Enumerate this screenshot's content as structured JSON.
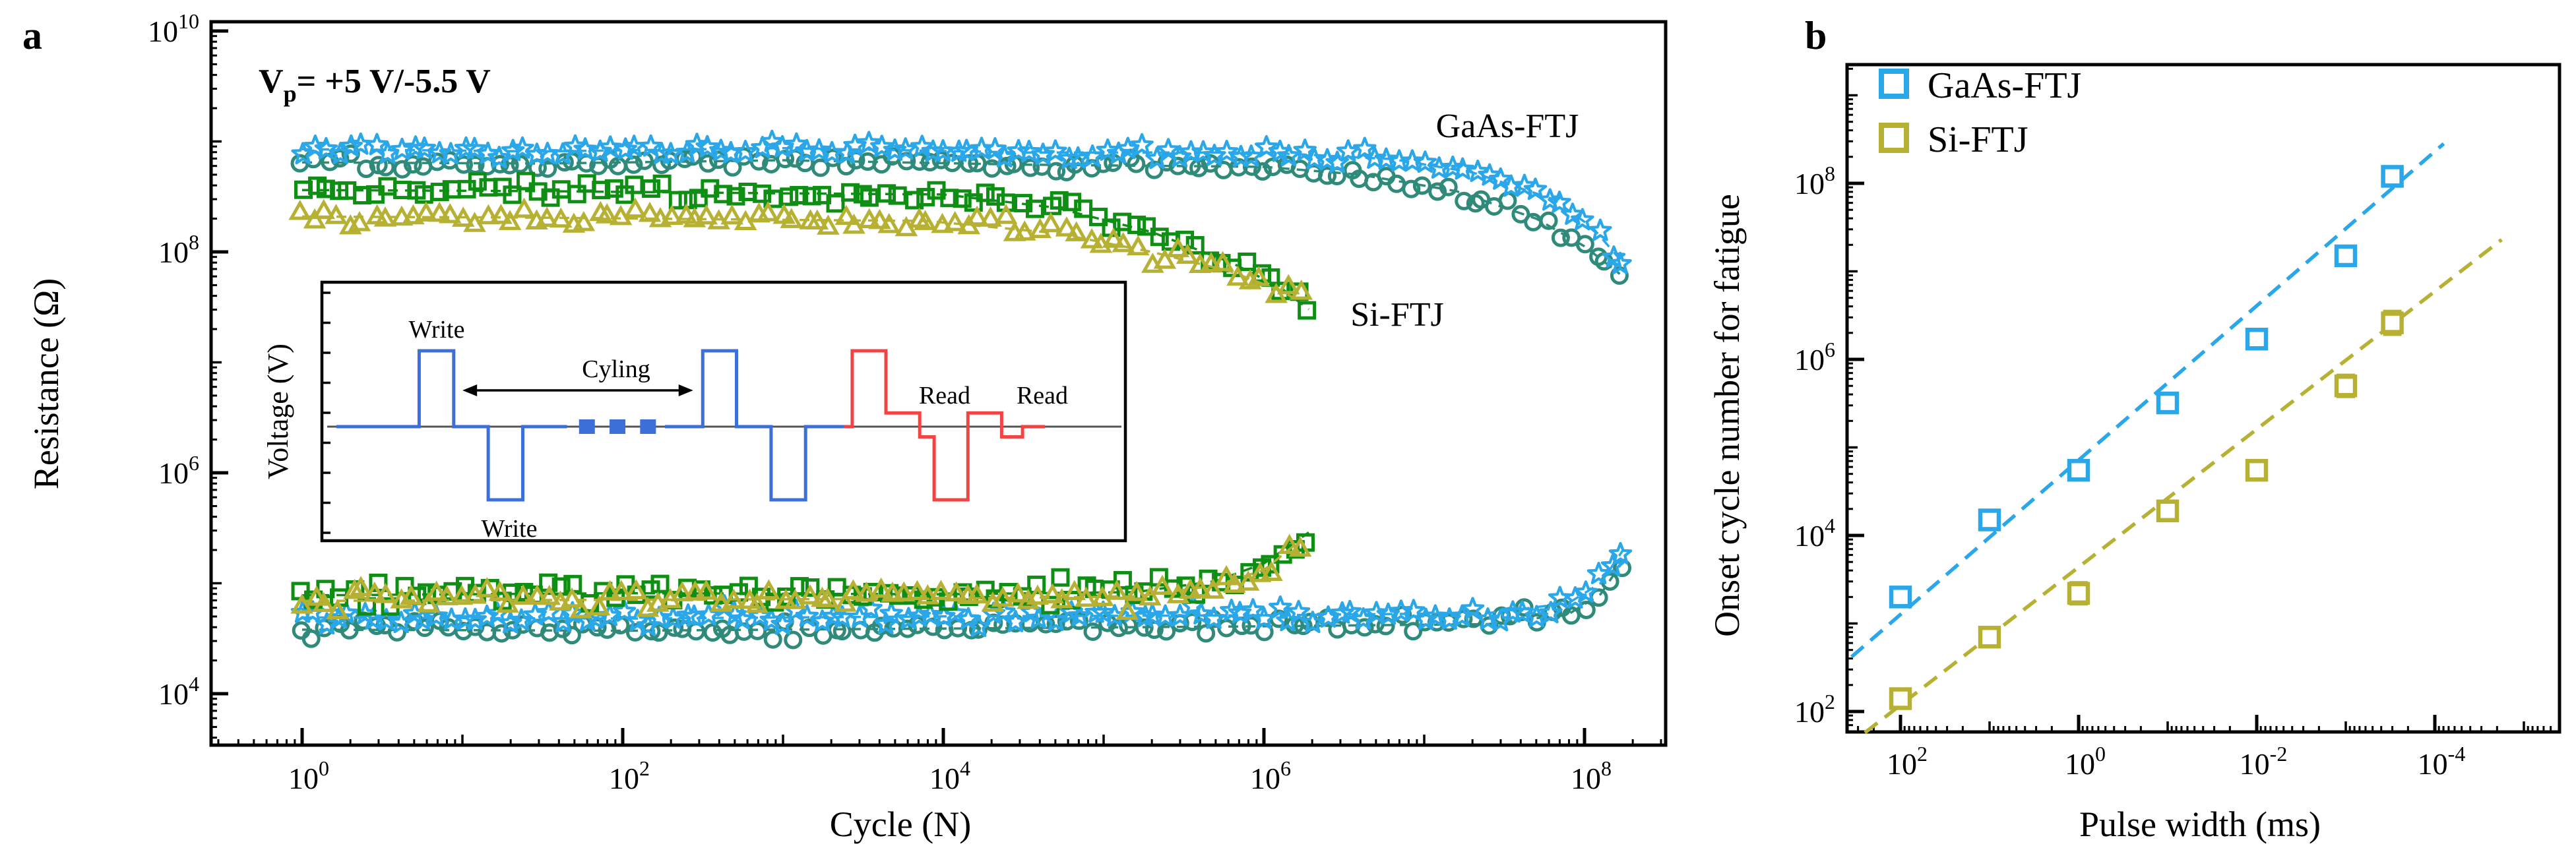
{
  "colors": {
    "skyblue": "#2AA7E8",
    "teal": "#2F8A79",
    "green": "#0E8F14",
    "olive": "#B7B133",
    "wave_blue": "#3C6FD8",
    "wave_red": "#F14444",
    "black": "#000000"
  },
  "chart_data": [
    {
      "id": "panel_a",
      "type": "scatter",
      "panel_label": "a",
      "annotation": {
        "v": "V",
        "sub": "p",
        "rest": "= +5 V/-5.5 V"
      },
      "xlabel": "Cycle (N)",
      "ylabel": "Resistance (Ω)",
      "xlim_log": [
        -0.57,
        8.5
      ],
      "ylim_log": [
        3.53,
        10.08
      ],
      "x_tick_exponents": [
        0,
        2,
        4,
        6,
        8
      ],
      "y_tick_exponents": [
        4,
        6,
        8,
        10
      ],
      "grid": false,
      "series_labels": [
        {
          "text": "GaAs-FTJ",
          "color_key": "skyblue",
          "log_x": 7.52,
          "log_y": 9.18
        },
        {
          "text": "Si-FTJ",
          "color_key": "olive",
          "log_x": 6.85,
          "log_y": 7.42
        }
      ],
      "series": [
        {
          "name": "GaAs-FTJ HRS (circles)",
          "marker": "circle",
          "color_key": "teal",
          "n": 108,
          "noise": 0.045,
          "anchors_log": [
            [
              0,
              8.81
            ],
            [
              1.5,
              8.8
            ],
            [
              3,
              8.83
            ],
            [
              4.5,
              8.79
            ],
            [
              6.0,
              8.77
            ],
            [
              6.6,
              8.7
            ],
            [
              7.2,
              8.55
            ],
            [
              7.7,
              8.3
            ],
            [
              8.0,
              8.05
            ],
            [
              8.22,
              7.8
            ]
          ]
        },
        {
          "name": "GaAs-FTJ HRS (stars)",
          "marker": "star",
          "color_key": "skyblue",
          "n": 108,
          "noise": 0.04,
          "anchors_log": [
            [
              0,
              8.93
            ],
            [
              1.5,
              8.91
            ],
            [
              3,
              8.94
            ],
            [
              4.5,
              8.9
            ],
            [
              6.0,
              8.9
            ],
            [
              6.8,
              8.84
            ],
            [
              7.3,
              8.72
            ],
            [
              7.8,
              8.48
            ],
            [
              8.05,
              8.22
            ],
            [
              8.24,
              7.9
            ]
          ]
        },
        {
          "name": "Si-FTJ HRS (squares)",
          "marker": "square",
          "color_key": "green",
          "n": 82,
          "noise": 0.05,
          "anchors_log": [
            [
              0,
              8.56
            ],
            [
              1.5,
              8.55
            ],
            [
              3,
              8.53
            ],
            [
              4.0,
              8.52
            ],
            [
              4.7,
              8.4
            ],
            [
              5.3,
              8.18
            ],
            [
              5.8,
              7.9
            ],
            [
              6.1,
              7.68
            ],
            [
              6.28,
              7.48
            ]
          ]
        },
        {
          "name": "Si-FTJ HRS (triangles)",
          "marker": "triangle",
          "color_key": "olive",
          "n": 82,
          "noise": 0.055,
          "anchors_log": [
            [
              0,
              8.32
            ],
            [
              1.5,
              8.31
            ],
            [
              3,
              8.29
            ],
            [
              3.9,
              8.28
            ],
            [
              4.7,
              8.17
            ],
            [
              5.3,
              8.0
            ],
            [
              5.8,
              7.82
            ],
            [
              6.08,
              7.66
            ],
            [
              6.22,
              7.56
            ]
          ]
        },
        {
          "name": "GaAs-FTJ LRS (circles)",
          "marker": "circle",
          "color_key": "teal",
          "n": 108,
          "noise": 0.055,
          "anchors_log": [
            [
              0,
              4.58
            ],
            [
              2,
              4.57
            ],
            [
              4,
              4.59
            ],
            [
              6,
              4.61
            ],
            [
              7.4,
              4.63
            ],
            [
              7.9,
              4.72
            ],
            [
              8.1,
              4.9
            ],
            [
              8.24,
              5.2
            ]
          ]
        },
        {
          "name": "GaAs-FTJ LRS (stars)",
          "marker": "star",
          "color_key": "skyblue",
          "n": 108,
          "noise": 0.05,
          "anchors_log": [
            [
              0,
              4.69
            ],
            [
              2,
              4.68
            ],
            [
              4,
              4.7
            ],
            [
              6,
              4.71
            ],
            [
              7.4,
              4.73
            ],
            [
              7.9,
              4.82
            ],
            [
              8.1,
              5.0
            ],
            [
              8.24,
              5.3
            ]
          ]
        },
        {
          "name": "Si-FTJ LRS (squares)",
          "marker": "square",
          "color_key": "green",
          "n": 82,
          "noise": 0.07,
          "anchors_log": [
            [
              0,
              4.89
            ],
            [
              2,
              4.91
            ],
            [
              4,
              4.9
            ],
            [
              5.2,
              4.92
            ],
            [
              5.7,
              5.02
            ],
            [
              6.0,
              5.18
            ],
            [
              6.28,
              5.46
            ]
          ]
        },
        {
          "name": "Si-FTJ LRS (triangles)",
          "marker": "triangle",
          "color_key": "olive",
          "n": 82,
          "noise": 0.07,
          "anchors_log": [
            [
              0,
              4.84
            ],
            [
              2,
              4.85
            ],
            [
              4,
              4.86
            ],
            [
              5.2,
              4.88
            ],
            [
              5.7,
              4.98
            ],
            [
              6.0,
              5.12
            ],
            [
              6.22,
              5.38
            ]
          ]
        }
      ],
      "inset": {
        "ylabel": "Voltage (V)",
        "labels": {
          "write_top": "Write",
          "write_bottom": "Write",
          "cycling": "Cyling",
          "read_1": "Read",
          "read_2": "Read"
        },
        "blue_wave_1": [
          [
            0.018,
            0
          ],
          [
            0.121,
            0
          ],
          [
            0.121,
            1
          ],
          [
            0.164,
            1
          ],
          [
            0.164,
            0
          ],
          [
            0.207,
            0
          ],
          [
            0.207,
            -1
          ],
          [
            0.25,
            -1
          ],
          [
            0.25,
            0
          ],
          [
            0.305,
            0
          ]
        ],
        "blue_wave_2": [
          [
            0.427,
            0
          ],
          [
            0.474,
            0
          ],
          [
            0.474,
            1
          ],
          [
            0.516,
            1
          ],
          [
            0.516,
            0
          ],
          [
            0.559,
            0
          ],
          [
            0.559,
            -1
          ],
          [
            0.602,
            -1
          ],
          [
            0.602,
            0
          ],
          [
            0.65,
            0
          ]
        ],
        "blue_dashes_x": [
          0.32,
          0.358,
          0.396
        ],
        "red_wave": [
          [
            0.65,
            0
          ],
          [
            0.66,
            0
          ],
          [
            0.66,
            1
          ],
          [
            0.702,
            1
          ],
          [
            0.702,
            0.18
          ],
          [
            0.744,
            0.18
          ],
          [
            0.744,
            -0.14
          ],
          [
            0.762,
            -0.14
          ],
          [
            0.762,
            -1
          ],
          [
            0.804,
            -1
          ],
          [
            0.804,
            0.18
          ],
          [
            0.846,
            0.18
          ],
          [
            0.846,
            -0.14
          ],
          [
            0.872,
            -0.14
          ],
          [
            0.872,
            0
          ],
          [
            0.9,
            0
          ]
        ],
        "cycling_arrow": {
          "x1_frac": 0.175,
          "x2_frac": 0.462
        }
      }
    },
    {
      "id": "panel_b",
      "type": "scatter",
      "panel_label": "b",
      "xlabel": "Pulse width (ms)",
      "ylabel": "Onset cycle number for fatigue",
      "x_axis_reversed": true,
      "xlim_log": [
        2.6,
        -5.4
      ],
      "ylim_log": [
        1.78,
        9.35
      ],
      "x_tick_exponents": [
        2,
        0,
        -2,
        -4
      ],
      "y_tick_exponents": [
        2,
        4,
        6,
        8
      ],
      "grid": false,
      "legend": [
        {
          "label": "GaAs-FTJ",
          "color_key": "skyblue"
        },
        {
          "label": "Si-FTJ",
          "color_key": "olive"
        }
      ],
      "series": [
        {
          "name": "GaAs-FTJ",
          "marker": "square",
          "color_key": "skyblue",
          "points": [
            {
              "pw_ms": 100,
              "onset": 2000,
              "err_log": 0
            },
            {
              "pw_ms": 10,
              "onset": 15000,
              "err_log": 0.1
            },
            {
              "pw_ms": 1,
              "onset": 55000,
              "err_log": 0
            },
            {
              "pw_ms": 0.1,
              "onset": 320000,
              "err_log": 0.06
            },
            {
              "pw_ms": 0.01,
              "onset": 1700000,
              "err_log": 0.09
            },
            {
              "pw_ms": 0.001,
              "onset": 15000000,
              "err_log": 0.05
            },
            {
              "pw_ms": 0.0003,
              "onset": 120000000,
              "err_log": 0.1
            }
          ]
        },
        {
          "name": "Si-FTJ",
          "marker": "square",
          "color_key": "olive",
          "points": [
            {
              "pw_ms": 100,
              "onset": 140,
              "err_log": 0
            },
            {
              "pw_ms": 10,
              "onset": 700,
              "err_log": 0.09
            },
            {
              "pw_ms": 1,
              "onset": 2200,
              "err_log": 0.12
            },
            {
              "pw_ms": 0.1,
              "onset": 19000,
              "err_log": 0.08
            },
            {
              "pw_ms": 0.01,
              "onset": 55000,
              "err_log": 0
            },
            {
              "pw_ms": 0.001,
              "onset": 500000,
              "err_log": 0.12
            },
            {
              "pw_ms": 0.0003,
              "onset": 2600000,
              "err_log": 0.13
            }
          ]
        }
      ],
      "fit_lines": [
        {
          "series": "GaAs-FTJ",
          "color_key": "skyblue",
          "endpoints_log": [
            [
              2.55,
              2.62
            ],
            [
              -4.1,
              8.45
            ]
          ]
        },
        {
          "series": "Si-FTJ",
          "color_key": "olive",
          "endpoints_log": [
            [
              2.4,
              1.76
            ],
            [
              -4.75,
              7.36
            ]
          ]
        }
      ]
    }
  ]
}
